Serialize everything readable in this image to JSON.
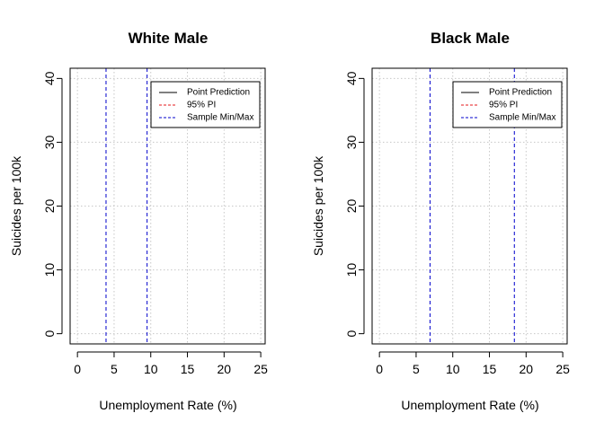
{
  "chart_data": [
    {
      "type": "line",
      "title": "White  Male",
      "xlabel": "Unemployment Rate (%)",
      "ylabel": "Suicides per 100k",
      "xlim": [
        -1,
        25.6
      ],
      "ylim": [
        -1.6,
        41.6
      ],
      "xticks": [
        0,
        5,
        10,
        15,
        20,
        25
      ],
      "yticks": [
        0,
        10,
        20,
        30,
        40
      ],
      "grid": true,
      "legend_position": "top-right",
      "legend": [
        {
          "label": "Point Prediction",
          "color": "#000000",
          "dash": "solid"
        },
        {
          "label": "95% PI",
          "color": "#e41a1c",
          "dash": "dashed"
        },
        {
          "label": "Sample Min/Max",
          "color": "#0000cc",
          "dash": "dashed"
        }
      ],
      "vlines": [
        {
          "x": 3.9,
          "color": "#0000cc",
          "dash": "dashed"
        },
        {
          "x": 9.5,
          "color": "#0000cc",
          "dash": "dashed"
        }
      ]
    },
    {
      "type": "line",
      "title": "Black  Male",
      "xlabel": "Unemployment Rate (%)",
      "ylabel": "Suicides per 100k",
      "xlim": [
        -1,
        25.6
      ],
      "ylim": [
        -1.6,
        41.6
      ],
      "xticks": [
        0,
        5,
        10,
        15,
        20,
        25
      ],
      "yticks": [
        0,
        10,
        20,
        30,
        40
      ],
      "grid": true,
      "legend_position": "top-right",
      "legend": [
        {
          "label": "Point Prediction",
          "color": "#000000",
          "dash": "solid"
        },
        {
          "label": "95% PI",
          "color": "#e41a1c",
          "dash": "dashed"
        },
        {
          "label": "Sample Min/Max",
          "color": "#0000cc",
          "dash": "dashed"
        }
      ],
      "vlines": [
        {
          "x": 6.9,
          "color": "#0000cc",
          "dash": "dashed"
        },
        {
          "x": 18.4,
          "color": "#0000cc",
          "dash": "dashed"
        }
      ]
    }
  ]
}
